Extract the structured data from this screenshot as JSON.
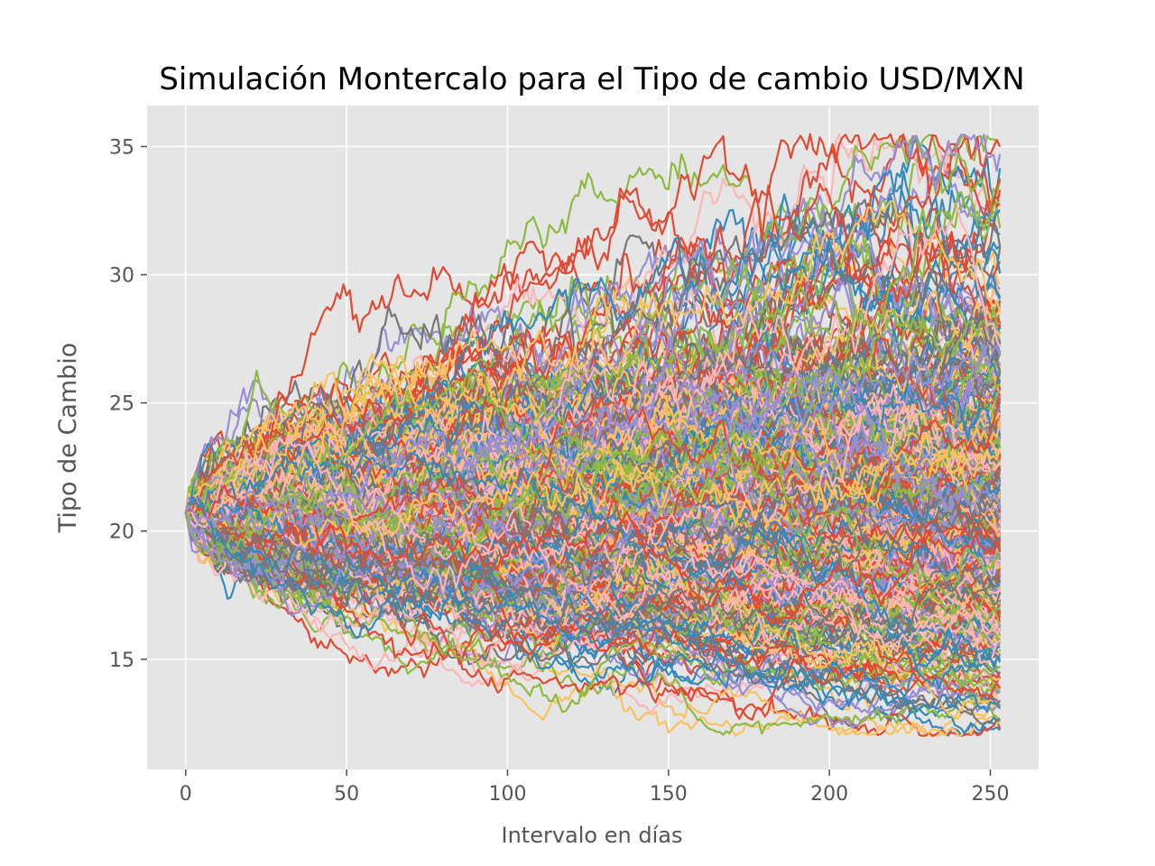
{
  "chart_data": {
    "type": "line",
    "title": "Simulación Montercalo para el Tipo de cambio USD/MXN",
    "xlabel": "Intervalo en días",
    "ylabel": "Tipo de Cambio",
    "xlim": [
      -12,
      265
    ],
    "ylim": [
      10.7,
      36.6
    ],
    "xticks": [
      0,
      50,
      100,
      150,
      200,
      250
    ],
    "xtick_labels": [
      "0",
      "50",
      "100",
      "150",
      "200",
      "250"
    ],
    "yticks": [
      15,
      20,
      25,
      30,
      35
    ],
    "ytick_labels": [
      "15",
      "20",
      "25",
      "30",
      "35"
    ],
    "grid": true,
    "background": "#E5E5E5",
    "grid_color": "#FFFFFF",
    "series_colors": [
      "#E24A33",
      "#348ABD",
      "#988ED5",
      "#777777",
      "#FBC15E",
      "#8EBA42",
      "#FFB5B8"
    ],
    "simulation": {
      "n_paths": 500,
      "n_steps": 254,
      "start_value": 20.7,
      "min_final": 12.0,
      "max_final": 35.5
    }
  }
}
